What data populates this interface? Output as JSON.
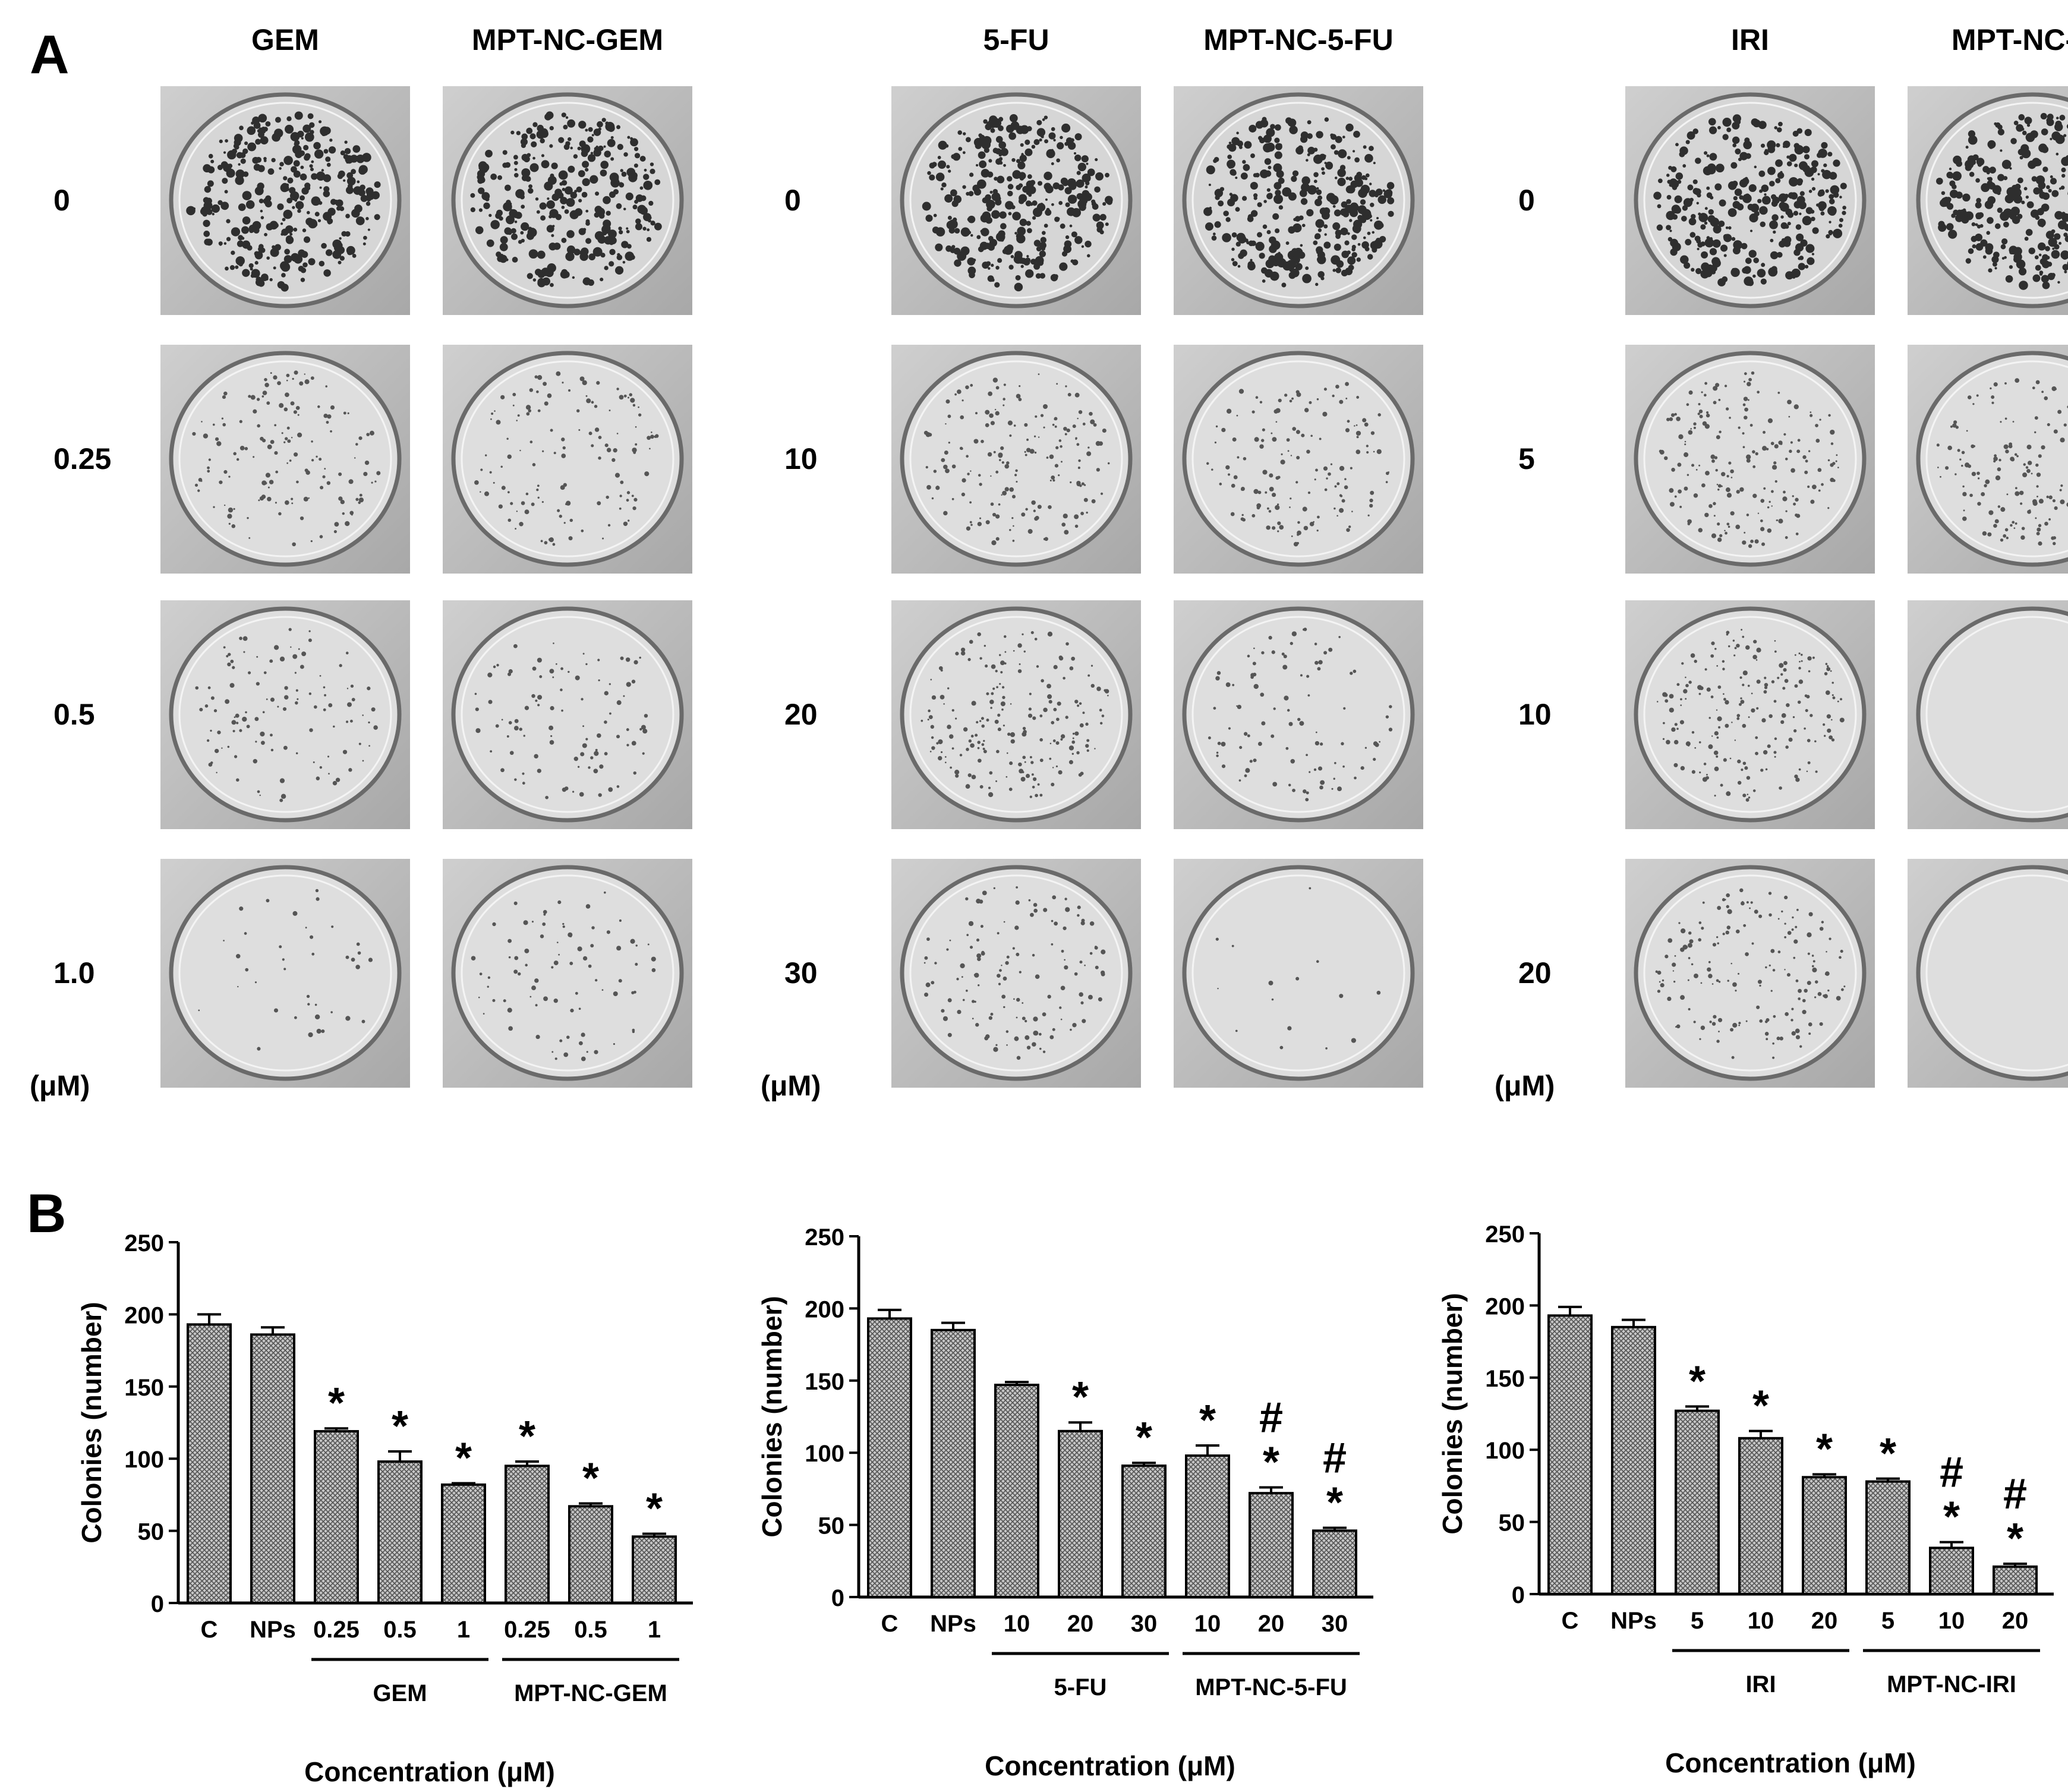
{
  "panel_a": {
    "letter": "A",
    "unit": "(μM)",
    "groups": [
      {
        "headers": [
          "GEM",
          "MPT-NC-GEM"
        ],
        "concentrations": [
          "0",
          "0.25",
          "0.5",
          "1.0"
        ]
      },
      {
        "headers": [
          "5-FU",
          "MPT-NC-5-FU"
        ],
        "concentrations": [
          "0",
          "10",
          "20",
          "30"
        ]
      },
      {
        "headers": [
          "IRI",
          "MPT-NC-IRI"
        ],
        "concentrations": [
          "0",
          "5",
          "10",
          "20"
        ]
      }
    ],
    "colony_density": [
      [
        [
          1.0,
          1.0
        ],
        [
          0.45,
          0.4
        ],
        [
          0.35,
          0.3
        ],
        [
          0.12,
          0.25
        ]
      ],
      [
        [
          1.0,
          1.0
        ],
        [
          0.55,
          0.45
        ],
        [
          0.6,
          0.3
        ],
        [
          0.4,
          0.05
        ]
      ],
      [
        [
          1.0,
          1.0
        ],
        [
          0.6,
          0.55
        ],
        [
          0.6,
          0.0
        ],
        [
          0.5,
          0.0
        ]
      ]
    ]
  },
  "panel_b_letter": "B",
  "colors": {
    "bar_fill": "#9a9a9a",
    "bar_stroke": "#000000",
    "background": "#ffffff"
  },
  "chart_data": [
    {
      "type": "bar",
      "ylabel": "Colonies (number)",
      "xlabel": "Concentration (μM)",
      "ylim": [
        0,
        250
      ],
      "yticks": [
        0,
        50,
        100,
        150,
        200,
        250
      ],
      "categories": [
        "C",
        "NPs",
        "0.25",
        "0.5",
        "1",
        "0.25",
        "0.5",
        "1"
      ],
      "values": [
        193,
        186,
        119,
        98,
        82,
        95,
        67,
        46
      ],
      "errors": [
        7,
        5,
        2,
        7,
        1,
        3,
        2,
        2
      ],
      "annotations": [
        [],
        [],
        [
          "*"
        ],
        [
          "*"
        ],
        [
          "*"
        ],
        [
          "*"
        ],
        [
          "*"
        ],
        [
          "*"
        ]
      ],
      "groups": [
        {
          "label": "GEM",
          "from": 2,
          "to": 4
        },
        {
          "label": "MPT-NC-GEM",
          "from": 5,
          "to": 7
        }
      ]
    },
    {
      "type": "bar",
      "ylabel": "Colonies (number)",
      "xlabel": "Concentration (μM)",
      "ylim": [
        0,
        250
      ],
      "yticks": [
        0,
        50,
        100,
        150,
        200,
        250
      ],
      "categories": [
        "C",
        "NPs",
        "10",
        "20",
        "30",
        "10",
        "20",
        "30"
      ],
      "values": [
        193,
        185,
        147,
        115,
        91,
        98,
        72,
        46
      ],
      "errors": [
        6,
        5,
        2,
        6,
        2,
        7,
        4,
        2
      ],
      "annotations": [
        [],
        [],
        [],
        [
          "*"
        ],
        [
          "*"
        ],
        [
          "*"
        ],
        [
          "#",
          "*"
        ],
        [
          "#",
          "*"
        ]
      ],
      "groups": [
        {
          "label": "5-FU",
          "from": 2,
          "to": 4
        },
        {
          "label": "MPT-NC-5-FU",
          "from": 5,
          "to": 7
        }
      ]
    },
    {
      "type": "bar",
      "ylabel": "Colonies (number)",
      "xlabel": "Concentration (μM)",
      "ylim": [
        0,
        250
      ],
      "yticks": [
        0,
        50,
        100,
        150,
        200,
        250
      ],
      "categories": [
        "C",
        "NPs",
        "5",
        "10",
        "20",
        "5",
        "10",
        "20"
      ],
      "values": [
        193,
        185,
        127,
        108,
        81,
        78,
        32,
        19
      ],
      "errors": [
        6,
        5,
        3,
        5,
        2,
        2,
        4,
        2
      ],
      "annotations": [
        [],
        [],
        [
          "*"
        ],
        [
          "*"
        ],
        [
          "*"
        ],
        [
          "*"
        ],
        [
          "#",
          "*"
        ],
        [
          "#",
          "*"
        ]
      ],
      "groups": [
        {
          "label": "IRI",
          "from": 2,
          "to": 4
        },
        {
          "label": "MPT-NC-IRI",
          "from": 5,
          "to": 7
        }
      ]
    }
  ]
}
